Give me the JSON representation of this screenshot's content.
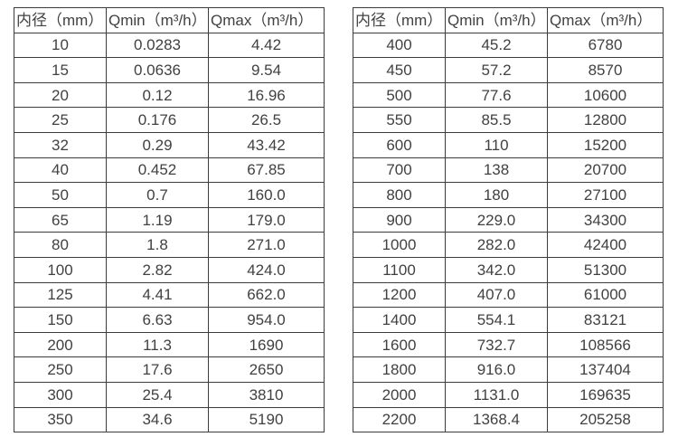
{
  "colors": {
    "background": "#ffffff",
    "text": "#414141",
    "border": "#3c3c3c"
  },
  "chart_data": [
    {
      "type": "table",
      "title": "",
      "columns": [
        "内径（mm）",
        "Qmin（m³/h）",
        "Qmax（m³/h）"
      ],
      "rows": [
        [
          "10",
          "0.0283",
          "4.42"
        ],
        [
          "15",
          "0.0636",
          "9.54"
        ],
        [
          "20",
          "0.12",
          "16.96"
        ],
        [
          "25",
          "0.176",
          "26.5"
        ],
        [
          "32",
          "0.29",
          "43.42"
        ],
        [
          "40",
          "0.452",
          "67.85"
        ],
        [
          "50",
          "0.7",
          "160.0"
        ],
        [
          "65",
          "1.19",
          "179.0"
        ],
        [
          "80",
          "1.8",
          "271.0"
        ],
        [
          "100",
          "2.82",
          "424.0"
        ],
        [
          "125",
          "4.41",
          "662.0"
        ],
        [
          "150",
          "6.63",
          "954.0"
        ],
        [
          "200",
          "11.3",
          "1690"
        ],
        [
          "250",
          "17.6",
          "2650"
        ],
        [
          "300",
          "25.4",
          "3810"
        ],
        [
          "350",
          "34.6",
          "5190"
        ]
      ]
    },
    {
      "type": "table",
      "title": "",
      "columns": [
        "内径（mm）",
        "Qmin（m³/h）",
        "Qmax（m³/h）"
      ],
      "rows": [
        [
          "400",
          "45.2",
          "6780"
        ],
        [
          "450",
          "57.2",
          "8570"
        ],
        [
          "500",
          "77.6",
          "10600"
        ],
        [
          "550",
          "85.5",
          "12800"
        ],
        [
          "600",
          "110",
          "15200"
        ],
        [
          "700",
          "138",
          "20700"
        ],
        [
          "800",
          "180",
          "27100"
        ],
        [
          "900",
          "229.0",
          "34300"
        ],
        [
          "1000",
          "282.0",
          "42400"
        ],
        [
          "1100",
          "342.0",
          "51300"
        ],
        [
          "1200",
          "407.0",
          "61000"
        ],
        [
          "1400",
          "554.1",
          "83121"
        ],
        [
          "1600",
          "732.7",
          "108566"
        ],
        [
          "1800",
          "916.0",
          "137404"
        ],
        [
          "2000",
          "1131.0",
          "169635"
        ],
        [
          "2200",
          "1368.4",
          "205258"
        ]
      ]
    }
  ]
}
